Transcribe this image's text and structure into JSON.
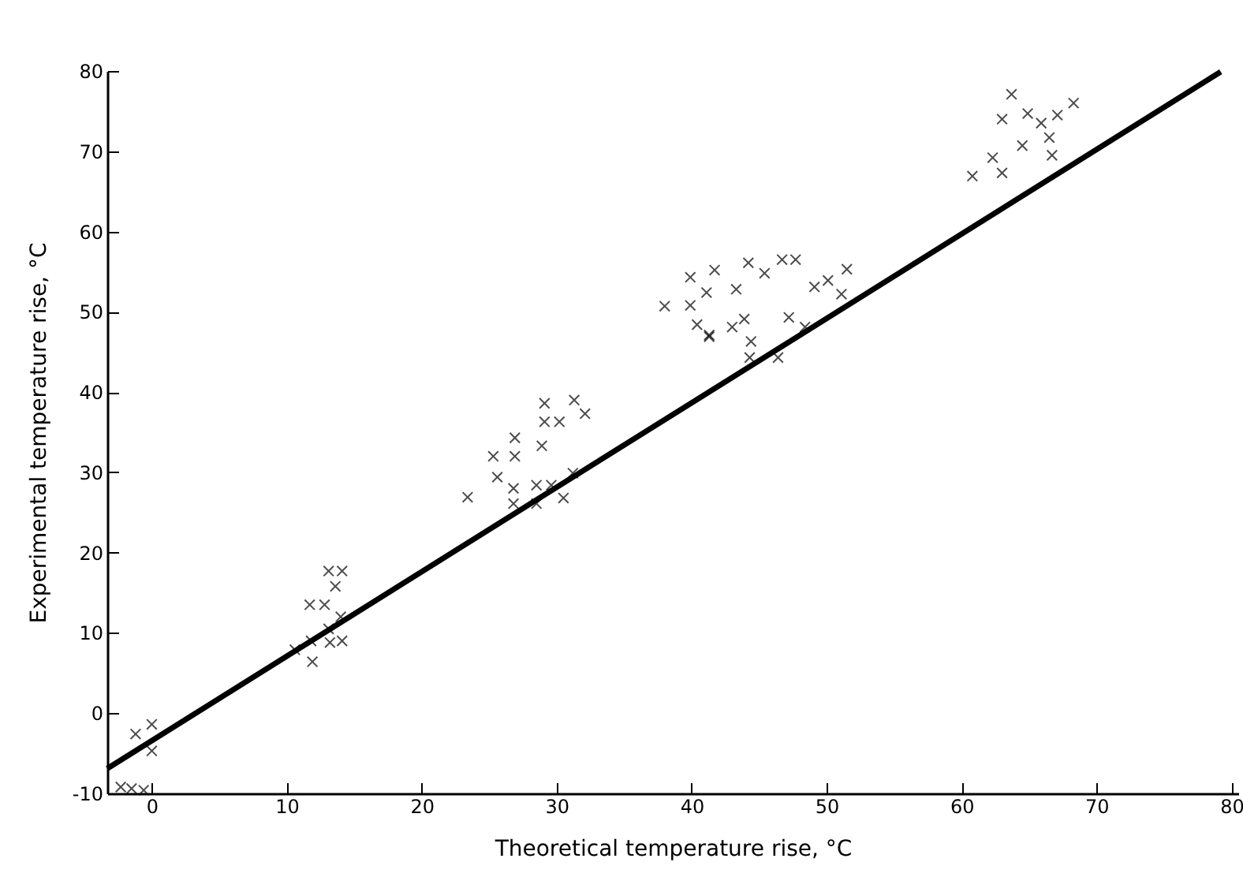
{
  "chart_data": {
    "type": "scatter",
    "xlabel": "Theoretical temperature rise,     °C",
    "ylabel": "Experimental temperature rise,     °C",
    "xlim": [
      -3.3,
      80.5
    ],
    "ylim": [
      -10,
      80
    ],
    "xticks": [
      0,
      10,
      20,
      30,
      40,
      50,
      60,
      70,
      80
    ],
    "yticks": [
      -10,
      0,
      10,
      20,
      30,
      40,
      50,
      60,
      70,
      80
    ],
    "grid": false,
    "series": [
      {
        "marker": "cross",
        "color": "#000000",
        "x": [
          -1.2,
          0,
          0,
          -2.3,
          -1.5,
          -0.6,
          13.1,
          14.1,
          13.6,
          11.7,
          12.8,
          14.0,
          13.1,
          10.6,
          11.8,
          13.2,
          14.1,
          11.9,
          23.4,
          25.6,
          26.8,
          26.8,
          25.3,
          26.9,
          26.9,
          28.5,
          29.6,
          28.5,
          30.5,
          31.2,
          28.9,
          29.1,
          29.1,
          30.2,
          31.3,
          32.1,
          41.3,
          38.0,
          39.9,
          39.9,
          41.1,
          41.7,
          40.4,
          41.3,
          43.0,
          43.9,
          43.3,
          44.2,
          45.4,
          46.7,
          47.7,
          44.4,
          44.3,
          46.4,
          47.2,
          48.4,
          49.1,
          50.1,
          51.5,
          51.1,
          63.7,
          63.0,
          64.9,
          65.9,
          67.1,
          68.3,
          66.5,
          66.7,
          64.5,
          62.3,
          63.0,
          60.8
        ],
        "values": [
          -2.6,
          -1.4,
          -4.7,
          -9.2,
          -9.4,
          -9.6,
          17.7,
          17.7,
          15.8,
          13.5,
          13.5,
          12.0,
          10.5,
          7.9,
          9.0,
          8.8,
          9.0,
          6.4,
          26.9,
          29.4,
          28.0,
          26.1,
          32.0,
          32.0,
          34.3,
          28.4,
          28.4,
          26.1,
          26.8,
          29.9,
          33.3,
          38.6,
          36.3,
          36.3,
          39.0,
          37.3,
          46.9,
          50.7,
          50.8,
          54.3,
          52.4,
          55.2,
          48.4,
          47.1,
          48.1,
          49.1,
          52.8,
          56.1,
          54.8,
          56.5,
          56.5,
          46.3,
          44.3,
          44.3,
          49.3,
          48.1,
          53.1,
          53.9,
          55.3,
          52.2,
          77.1,
          74.0,
          74.7,
          73.5,
          74.5,
          76.0,
          71.7,
          69.5,
          70.7,
          69.2,
          67.3,
          66.9
        ]
      },
      {
        "type": "line",
        "color": "#000000",
        "line_style": "solid",
        "x": [
          -3.3,
          79.2
        ],
        "values": [
          -6.9,
          79.9
        ]
      }
    ]
  }
}
